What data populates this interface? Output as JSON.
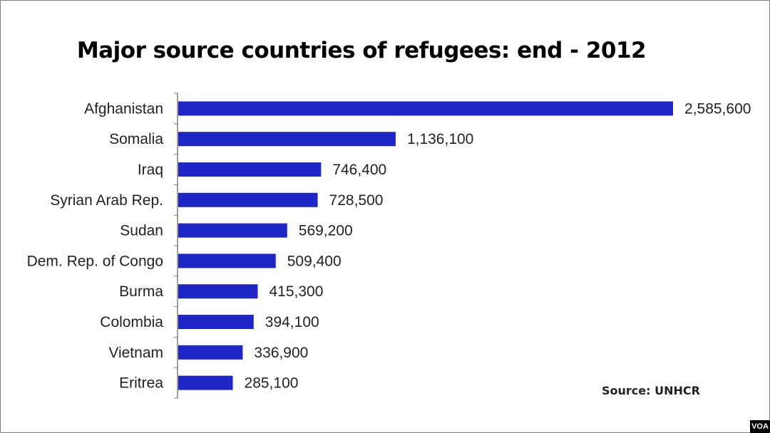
{
  "chart_data": {
    "type": "bar",
    "orientation": "horizontal",
    "title": "Major source countries of refugees: end - 2012",
    "categories": [
      "Afghanistan",
      "Somalia",
      "Iraq",
      "Syrian Arab Rep.",
      "Sudan",
      "Dem. Rep. of Congo",
      "Burma",
      "Colombia",
      "Vietnam",
      "Eritrea"
    ],
    "values": [
      2585600,
      1136100,
      746400,
      728500,
      569200,
      509400,
      415300,
      394100,
      336900,
      285100
    ],
    "value_labels": [
      "2,585,600",
      "1,136,100",
      "746,400",
      "728,500",
      "569,200",
      "509,400",
      "415,300",
      "394,100",
      "336,900",
      "285,100"
    ],
    "xlim": [
      0,
      2585600
    ],
    "bar_color": "#1f26c8",
    "grid": false,
    "legend": "none",
    "source": "Source: UNHCR"
  },
  "logo": {
    "text": "VOA",
    "background": "#000000",
    "color": "#ffffff"
  }
}
